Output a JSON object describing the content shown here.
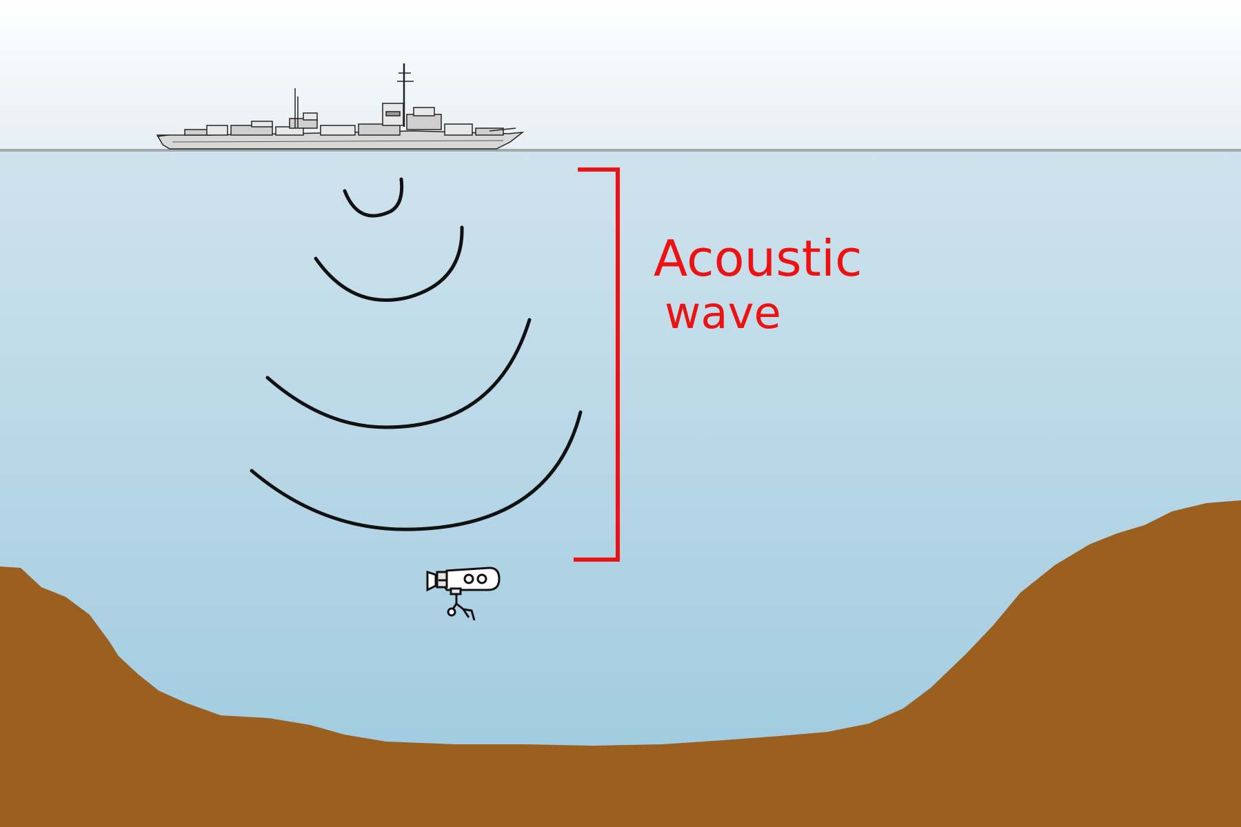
{
  "diagram": {
    "label": {
      "line1": "Acoustic",
      "line2": "wave",
      "color": "#ee1111"
    },
    "colors": {
      "sky_top": "#ffffff",
      "sky_bottom": "#e6eff4",
      "water_top": "#cde2ec",
      "water_bottom": "#9ecbe0",
      "seabed": "#9b6020",
      "waterline": "#a3a9ab",
      "wave": "#111111",
      "bracket": "#ee1111"
    },
    "icons": {
      "ship": "ship-icon",
      "rov": "underwater-rov-icon"
    }
  }
}
